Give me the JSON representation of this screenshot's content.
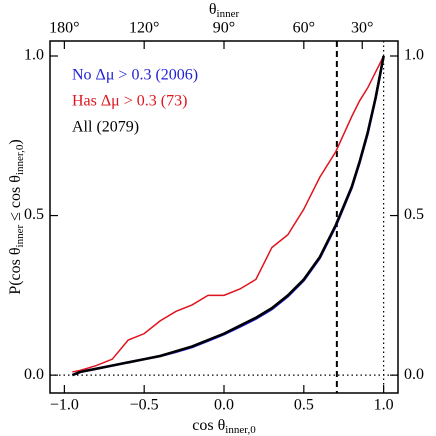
{
  "chart_data": {
    "type": "line",
    "xlabel": [
      {
        "text": "cos θ"
      },
      {
        "sub": "inner,0"
      }
    ],
    "ylabel": [
      {
        "text": "P(cos θ"
      },
      {
        "sub": "inner"
      },
      {
        "text": " ≤ cos θ"
      },
      {
        "sub": "inner,0"
      },
      {
        "text": ")"
      }
    ],
    "x2label": [
      {
        "text": "θ"
      },
      {
        "sub": "inner"
      }
    ],
    "x": [
      -0.95,
      -0.9,
      -0.8,
      -0.7,
      -0.6,
      -0.5,
      -0.4,
      -0.3,
      -0.2,
      -0.1,
      0,
      0.1,
      0.2,
      0.3,
      0.4,
      0.5,
      0.6,
      0.7,
      0.8,
      0.85,
      0.9,
      0.95,
      1.0
    ],
    "series": [
      {
        "name": "No Δμ > 0.3  (2006)",
        "color": "#1f1fd6",
        "values": [
          0,
          0.01,
          0.02,
          0.03,
          0.04,
          0.05,
          0.06,
          0.073,
          0.088,
          0.108,
          0.128,
          0.152,
          0.177,
          0.207,
          0.247,
          0.297,
          0.367,
          0.467,
          0.587,
          0.667,
          0.757,
          0.868,
          1.0
        ]
      },
      {
        "name": "Has Δμ > 0.3  (73)",
        "color": "#e0141e",
        "values": [
          0.01,
          0.015,
          0.03,
          0.05,
          0.11,
          0.13,
          0.17,
          0.2,
          0.22,
          0.25,
          0.25,
          0.27,
          0.3,
          0.4,
          0.44,
          0.52,
          0.62,
          0.7,
          0.81,
          0.86,
          0.9,
          0.95,
          1.0
        ]
      },
      {
        "name": "All  (2079)",
        "color": "#000000",
        "values": [
          0,
          0.01,
          0.02,
          0.03,
          0.04,
          0.05,
          0.06,
          0.075,
          0.09,
          0.11,
          0.13,
          0.155,
          0.18,
          0.21,
          0.25,
          0.3,
          0.37,
          0.47,
          0.59,
          0.67,
          0.76,
          0.87,
          1.0
        ]
      }
    ],
    "xlim": [
      -1.09,
      1.09
    ],
    "ylim": [
      -0.056,
      1.047
    ],
    "xticks": [
      {
        "value": -1,
        "label": "−1.0"
      },
      {
        "value": -0.5,
        "label": "−0.5"
      },
      {
        "value": 0,
        "label": "0.0"
      },
      {
        "value": 0.5,
        "label": "0.5"
      },
      {
        "value": 1,
        "label": "1.0"
      }
    ],
    "yticks": [
      {
        "value": 0,
        "label": "0.0"
      },
      {
        "value": 0.5,
        "label": "0.5"
      },
      {
        "value": 1,
        "label": "1.0"
      }
    ],
    "x2ticks": [
      {
        "value": 180,
        "label": "180°"
      },
      {
        "value": 120,
        "label": "120°"
      },
      {
        "value": 90,
        "label": "90°"
      },
      {
        "value": 60,
        "label": "60°"
      },
      {
        "value": 30,
        "label": "30°"
      }
    ],
    "vlines": [
      {
        "x": 0.707,
        "style": "dashed"
      },
      {
        "x": 1,
        "style": "dotted"
      }
    ],
    "hlines": [
      {
        "y": 0,
        "style": "dotted"
      }
    ],
    "legend": "upper left"
  }
}
